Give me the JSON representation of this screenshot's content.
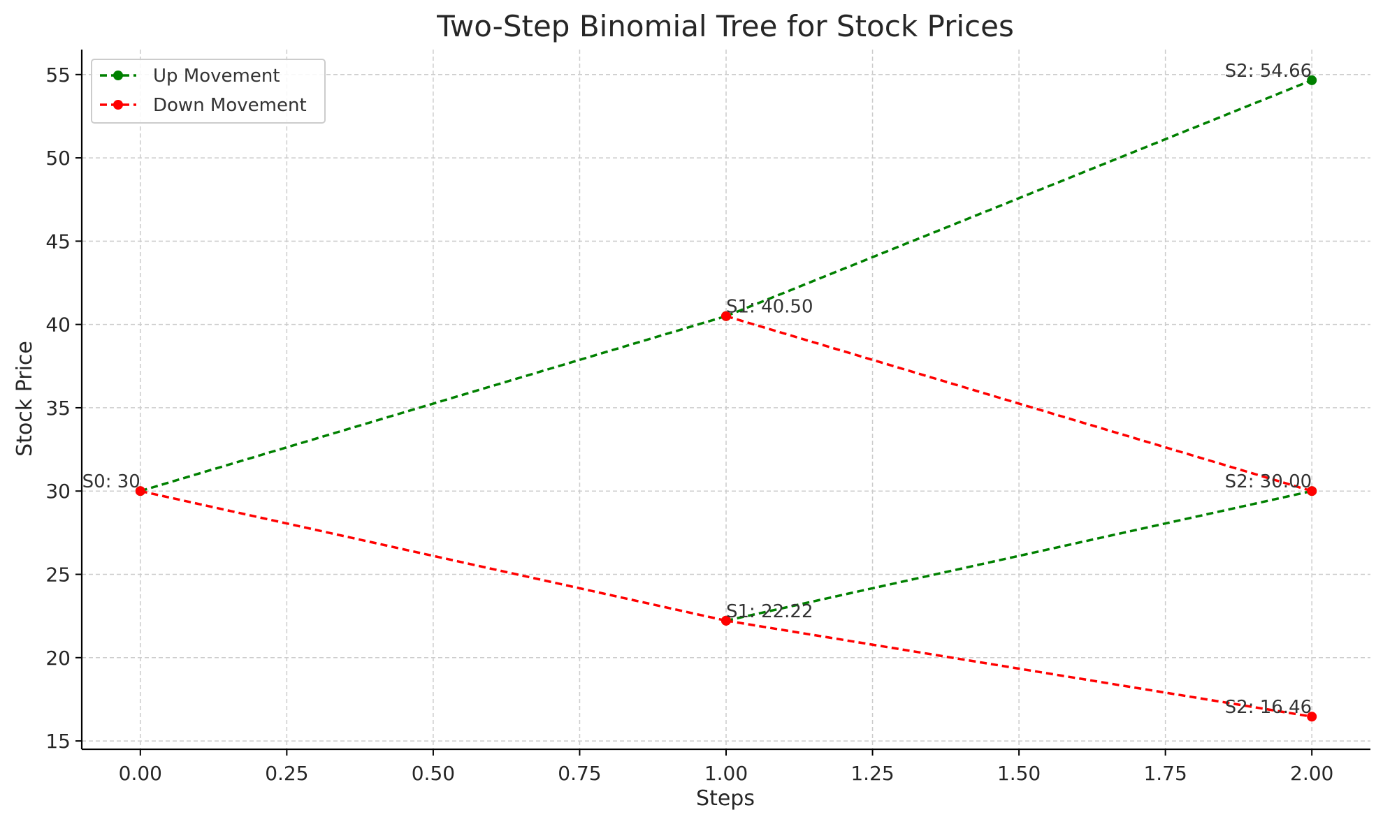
{
  "chart_data": {
    "type": "line",
    "title": "Two-Step Binomial Tree for Stock Prices",
    "xlabel": "Steps",
    "ylabel": "Stock Price",
    "xlim": [
      -0.1,
      2.1
    ],
    "ylim": [
      14.5,
      56.5
    ],
    "xticks": [
      0.0,
      0.25,
      0.5,
      0.75,
      1.0,
      1.25,
      1.5,
      1.75,
      2.0
    ],
    "xtick_labels": [
      "0.00",
      "0.25",
      "0.50",
      "0.75",
      "1.00",
      "1.25",
      "1.50",
      "1.75",
      "2.00"
    ],
    "yticks": [
      15,
      20,
      25,
      30,
      35,
      40,
      45,
      50,
      55
    ],
    "ytick_labels": [
      "15",
      "20",
      "25",
      "30",
      "35",
      "40",
      "45",
      "50",
      "55"
    ],
    "grid": true,
    "legend_position": "top-left",
    "colors": {
      "up": "#008000",
      "down": "#ff0000",
      "grid": "#cccccc",
      "text": "#262626"
    },
    "series": [
      {
        "name": "Up Movement",
        "key": "up",
        "segments": [
          [
            [
              0,
              30
            ],
            [
              1,
              40.5
            ]
          ],
          [
            [
              1,
              40.5
            ],
            [
              2,
              54.66
            ]
          ],
          [
            [
              1,
              22.22
            ],
            [
              2,
              30.0
            ]
          ]
        ]
      },
      {
        "name": "Down Movement",
        "key": "down",
        "segments": [
          [
            [
              0,
              30
            ],
            [
              1,
              22.22
            ]
          ],
          [
            [
              1,
              40.5
            ],
            [
              2,
              30.0
            ]
          ],
          [
            [
              1,
              22.22
            ],
            [
              2,
              16.46
            ]
          ]
        ]
      }
    ],
    "annotations": [
      {
        "x": 0,
        "y": 30,
        "text": "S0: 30",
        "align": "end"
      },
      {
        "x": 1,
        "y": 40.5,
        "text": "S1: 40.50",
        "align": "start"
      },
      {
        "x": 1,
        "y": 22.22,
        "text": "S1: 22.22",
        "align": "start"
      },
      {
        "x": 2,
        "y": 54.66,
        "text": "S2: 54.66",
        "align": "end"
      },
      {
        "x": 2,
        "y": 30.0,
        "text": "S2: 30.00",
        "align": "end"
      },
      {
        "x": 2,
        "y": 16.46,
        "text": "S2: 16.46",
        "align": "end"
      }
    ]
  }
}
